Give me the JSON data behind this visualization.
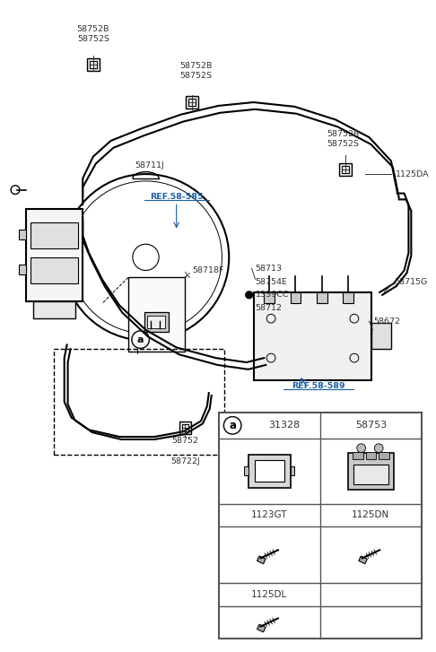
{
  "bg_color": "#ffffff",
  "fig_width": 4.86,
  "fig_height": 7.27,
  "dpi": 100,
  "labels": {
    "top_left_clamp1": "58752B\n58752S",
    "top_center_clamp": "58752B\n58752S",
    "top_right_clamp": "58752B\n58752S",
    "tube_label": "58711J",
    "ref_585": "REF.58-585",
    "label_1125DA": "1125DA",
    "label_58718F": "58718F",
    "label_58713": "58713",
    "label_58754E": "58754E",
    "label_1339CC": "1339CC",
    "label_58712": "58712",
    "label_58715G": "58715G",
    "label_58672": "58672",
    "ref_589": "REF.58-589",
    "label_58752": "58752",
    "label_58722J": "58722J",
    "table_a": "a",
    "table_31328": "31328",
    "table_58753": "58753",
    "table_1123GT": "1123GT",
    "table_1125DN": "1125DN",
    "table_1125DL": "1125DL"
  },
  "colors": {
    "line": "#000000",
    "label_text": "#333333",
    "ref_text": "#1a5fa8",
    "table_border": "#555555",
    "bg": "#ffffff"
  }
}
